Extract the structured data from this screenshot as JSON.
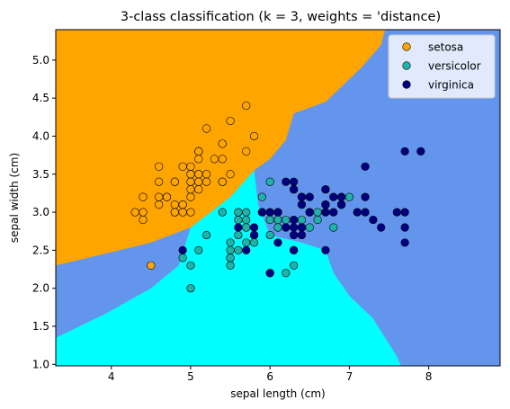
{
  "chart_data": {
    "type": "scatter",
    "title": "3-class classification (k = 3, weights = 'distance)",
    "xlabel": "sepal length (cm)",
    "ylabel": "sepal width (cm)",
    "xlim": [
      3.3,
      8.9
    ],
    "ylim": [
      0.98,
      5.4
    ],
    "xticks": [
      4,
      5,
      6,
      7,
      8
    ],
    "yticks": [
      1.0,
      1.5,
      2.0,
      2.5,
      3.0,
      3.5,
      4.0,
      4.5,
      5.0
    ],
    "grid": false,
    "legend_position": "top-right",
    "background_regions": {
      "colors": {
        "setosa": "#ffa500",
        "versicolor": "#00ffff",
        "virginica": "#6495ed"
      },
      "setosa_region_boundary": [
        [
          3.3,
          2.3
        ],
        [
          3.9,
          2.45
        ],
        [
          4.5,
          2.6
        ],
        [
          5.0,
          2.8
        ],
        [
          5.5,
          3.2
        ],
        [
          5.8,
          3.55
        ],
        [
          6.0,
          3.7
        ],
        [
          6.2,
          3.95
        ],
        [
          6.3,
          4.3
        ],
        [
          6.7,
          4.45
        ],
        [
          7.15,
          4.9
        ],
        [
          7.4,
          5.2
        ],
        [
          7.45,
          5.4
        ]
      ],
      "versicolor_region_boundary": [
        [
          5.8,
          3.55
        ],
        [
          5.85,
          3.1
        ],
        [
          6.0,
          2.7
        ],
        [
          6.4,
          2.6
        ],
        [
          6.7,
          2.5
        ],
        [
          6.8,
          2.2
        ],
        [
          7.0,
          1.9
        ],
        [
          7.3,
          1.6
        ],
        [
          7.6,
          1.1
        ],
        [
          7.65,
          0.98
        ]
      ],
      "versicolor_left_edge": [
        [
          3.3,
          1.35
        ],
        [
          3.9,
          1.65
        ],
        [
          4.5,
          2.0
        ],
        [
          4.85,
          2.3
        ],
        [
          5.0,
          2.8
        ]
      ]
    },
    "series": [
      {
        "name": "setosa",
        "color": "#ffa500",
        "points": [
          [
            5.1,
            3.5
          ],
          [
            4.9,
            3.0
          ],
          [
            4.7,
            3.2
          ],
          [
            4.6,
            3.1
          ],
          [
            5.0,
            3.6
          ],
          [
            5.4,
            3.9
          ],
          [
            4.6,
            3.4
          ],
          [
            5.0,
            3.4
          ],
          [
            4.4,
            2.9
          ],
          [
            4.9,
            3.1
          ],
          [
            5.4,
            3.7
          ],
          [
            4.8,
            3.4
          ],
          [
            4.8,
            3.0
          ],
          [
            4.3,
            3.0
          ],
          [
            5.8,
            4.0
          ],
          [
            5.7,
            4.4
          ],
          [
            5.4,
            3.9
          ],
          [
            5.1,
            3.5
          ],
          [
            5.7,
            3.8
          ],
          [
            5.1,
            3.8
          ],
          [
            5.4,
            3.4
          ],
          [
            5.1,
            3.7
          ],
          [
            4.6,
            3.6
          ],
          [
            5.1,
            3.3
          ],
          [
            4.8,
            3.4
          ],
          [
            5.0,
            3.0
          ],
          [
            5.0,
            3.4
          ],
          [
            5.2,
            3.5
          ],
          [
            5.2,
            3.4
          ],
          [
            4.7,
            3.2
          ],
          [
            4.8,
            3.1
          ],
          [
            5.4,
            3.4
          ],
          [
            5.2,
            4.1
          ],
          [
            5.5,
            4.2
          ],
          [
            4.9,
            3.1
          ],
          [
            5.0,
            3.2
          ],
          [
            5.5,
            3.5
          ],
          [
            4.9,
            3.6
          ],
          [
            4.4,
            3.0
          ],
          [
            5.1,
            3.4
          ],
          [
            5.0,
            3.5
          ],
          [
            4.5,
            2.3
          ],
          [
            4.4,
            3.2
          ],
          [
            5.0,
            3.5
          ],
          [
            5.1,
            3.8
          ],
          [
            4.8,
            3.0
          ],
          [
            5.1,
            3.8
          ],
          [
            4.6,
            3.2
          ],
          [
            5.3,
            3.7
          ],
          [
            5.0,
            3.3
          ]
        ]
      },
      {
        "name": "versicolor",
        "color": "#20b2aa",
        "points": [
          [
            7.0,
            3.2
          ],
          [
            6.4,
            3.2
          ],
          [
            6.9,
            3.1
          ],
          [
            5.5,
            2.3
          ],
          [
            6.5,
            2.8
          ],
          [
            5.7,
            2.8
          ],
          [
            6.3,
            3.3
          ],
          [
            4.9,
            2.4
          ],
          [
            6.6,
            2.9
          ],
          [
            5.2,
            2.7
          ],
          [
            5.0,
            2.0
          ],
          [
            5.9,
            3.0
          ],
          [
            6.0,
            2.2
          ],
          [
            6.1,
            2.9
          ],
          [
            5.6,
            2.9
          ],
          [
            6.7,
            3.1
          ],
          [
            5.6,
            3.0
          ],
          [
            5.8,
            2.7
          ],
          [
            6.2,
            2.2
          ],
          [
            5.6,
            2.5
          ],
          [
            5.9,
            3.2
          ],
          [
            6.1,
            2.8
          ],
          [
            6.3,
            2.5
          ],
          [
            6.1,
            2.8
          ],
          [
            6.4,
            2.9
          ],
          [
            6.6,
            3.0
          ],
          [
            6.8,
            2.8
          ],
          [
            6.7,
            3.0
          ],
          [
            6.0,
            2.9
          ],
          [
            5.7,
            2.6
          ],
          [
            5.5,
            2.4
          ],
          [
            5.5,
            2.4
          ],
          [
            5.8,
            2.7
          ],
          [
            6.0,
            2.7
          ],
          [
            5.4,
            3.0
          ],
          [
            6.0,
            3.4
          ],
          [
            6.7,
            3.1
          ],
          [
            6.3,
            2.3
          ],
          [
            5.6,
            3.0
          ],
          [
            5.5,
            2.5
          ],
          [
            5.5,
            2.6
          ],
          [
            6.1,
            3.0
          ],
          [
            5.8,
            2.6
          ],
          [
            5.0,
            2.3
          ],
          [
            5.6,
            2.7
          ],
          [
            5.7,
            3.0
          ],
          [
            5.7,
            2.9
          ],
          [
            6.2,
            2.9
          ],
          [
            5.1,
            2.5
          ],
          [
            5.7,
            2.8
          ]
        ]
      },
      {
        "name": "virginica",
        "color": "#000080",
        "points": [
          [
            6.3,
            3.3
          ],
          [
            5.8,
            2.7
          ],
          [
            7.1,
            3.0
          ],
          [
            6.3,
            2.9
          ],
          [
            6.5,
            3.0
          ],
          [
            7.6,
            3.0
          ],
          [
            4.9,
            2.5
          ],
          [
            7.3,
            2.9
          ],
          [
            6.7,
            2.5
          ],
          [
            7.2,
            3.6
          ],
          [
            6.5,
            3.2
          ],
          [
            6.4,
            2.7
          ],
          [
            6.8,
            3.0
          ],
          [
            5.7,
            2.5
          ],
          [
            5.8,
            2.8
          ],
          [
            6.4,
            3.2
          ],
          [
            6.5,
            3.0
          ],
          [
            7.7,
            3.8
          ],
          [
            7.7,
            2.6
          ],
          [
            6.0,
            2.2
          ],
          [
            6.9,
            3.2
          ],
          [
            5.6,
            2.8
          ],
          [
            7.7,
            2.8
          ],
          [
            6.3,
            2.7
          ],
          [
            6.7,
            3.3
          ],
          [
            7.2,
            3.2
          ],
          [
            6.2,
            2.8
          ],
          [
            6.1,
            3.0
          ],
          [
            6.4,
            2.8
          ],
          [
            7.2,
            3.0
          ],
          [
            7.4,
            2.8
          ],
          [
            7.9,
            3.8
          ],
          [
            6.4,
            2.8
          ],
          [
            6.3,
            2.8
          ],
          [
            6.1,
            2.6
          ],
          [
            7.7,
            3.0
          ],
          [
            6.3,
            3.4
          ],
          [
            6.4,
            3.1
          ],
          [
            6.0,
            3.0
          ],
          [
            6.9,
            3.1
          ],
          [
            6.7,
            3.1
          ],
          [
            6.9,
            3.1
          ],
          [
            5.8,
            2.7
          ],
          [
            6.8,
            3.2
          ],
          [
            6.7,
            3.3
          ],
          [
            6.7,
            3.0
          ],
          [
            6.3,
            2.5
          ],
          [
            6.5,
            3.0
          ],
          [
            6.2,
            3.4
          ],
          [
            5.9,
            3.0
          ]
        ]
      }
    ]
  }
}
